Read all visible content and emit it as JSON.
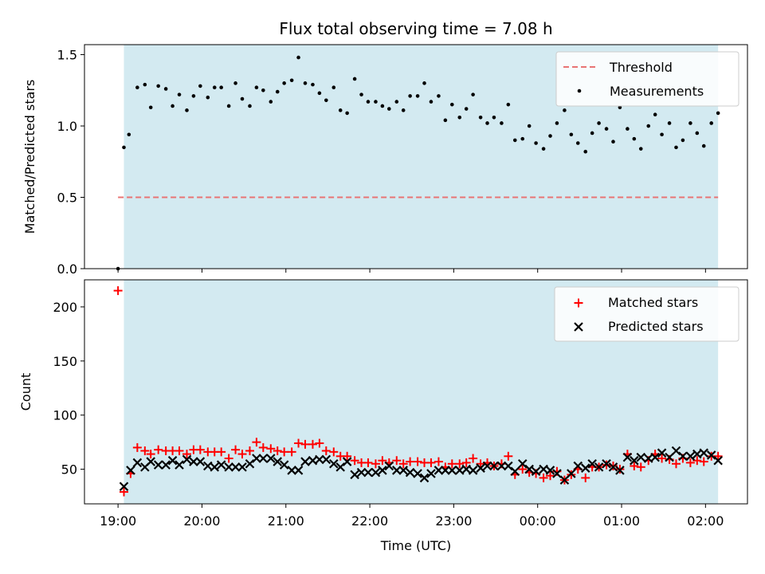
{
  "colors": {
    "shade": "#d3eaf1",
    "threshold": "#e87474",
    "matched": "#ff0000",
    "predicted": "#000000",
    "measurement": "#000000"
  },
  "chart_data": [
    {
      "type": "scatter",
      "title": "Flux total observing time = 7.08 h",
      "xlabel": "",
      "ylabel": "Matched/Predicted stars",
      "xlim": [
        -0.4,
        7.5
      ],
      "ylim": [
        0,
        1.57
      ],
      "yticks": [
        0.0,
        0.5,
        1.0,
        1.5
      ],
      "ytick_labels": [
        "0.0",
        "0.5",
        "1.0",
        "1.5"
      ],
      "shaded_interval": [
        0.07,
        7.15
      ],
      "threshold": {
        "name": "Threshold",
        "value": 0.5,
        "x_range": [
          0,
          7.15
        ]
      },
      "legend": {
        "position": "top-right",
        "entries": [
          "Threshold",
          "Measurements"
        ]
      },
      "series": [
        {
          "name": "Measurements",
          "x": [
            0.0,
            0.07,
            0.13,
            0.23,
            0.32,
            0.39,
            0.48,
            0.57,
            0.65,
            0.73,
            0.82,
            0.9,
            0.98,
            1.07,
            1.15,
            1.23,
            1.32,
            1.4,
            1.48,
            1.57,
            1.65,
            1.73,
            1.82,
            1.9,
            1.98,
            2.07,
            2.15,
            2.23,
            2.32,
            2.4,
            2.48,
            2.57,
            2.65,
            2.73,
            2.82,
            2.9,
            2.98,
            3.07,
            3.15,
            3.23,
            3.32,
            3.4,
            3.48,
            3.57,
            3.65,
            3.73,
            3.82,
            3.9,
            3.98,
            4.07,
            4.15,
            4.23,
            4.32,
            4.4,
            4.48,
            4.57,
            4.65,
            4.73,
            4.82,
            4.9,
            4.98,
            5.07,
            5.15,
            5.23,
            5.32,
            5.4,
            5.48,
            5.57,
            5.65,
            5.73,
            5.82,
            5.9,
            5.98,
            6.07,
            6.15,
            6.23,
            6.32,
            6.4,
            6.48,
            6.57,
            6.65,
            6.73,
            6.82,
            6.9,
            6.98,
            7.07,
            7.15
          ],
          "values": [
            0.0,
            0.85,
            0.94,
            1.27,
            1.29,
            1.13,
            1.28,
            1.26,
            1.14,
            1.22,
            1.11,
            1.21,
            1.28,
            1.2,
            1.27,
            1.27,
            1.14,
            1.3,
            1.19,
            1.14,
            1.27,
            1.25,
            1.17,
            1.24,
            1.3,
            1.32,
            1.48,
            1.3,
            1.29,
            1.23,
            1.18,
            1.27,
            1.11,
            1.09,
            1.33,
            1.22,
            1.17,
            1.17,
            1.14,
            1.12,
            1.17,
            1.11,
            1.21,
            1.21,
            1.3,
            1.17,
            1.21,
            1.04,
            1.15,
            1.06,
            1.12,
            1.22,
            1.06,
            1.02,
            1.06,
            1.02,
            1.15,
            0.9,
            0.91,
            1.0,
            0.88,
            0.84,
            0.93,
            1.02,
            1.11,
            0.94,
            0.88,
            0.82,
            0.95,
            1.02,
            0.98,
            0.89,
            1.13,
            0.98,
            0.91,
            0.84,
            1.0,
            1.08,
            0.94,
            1.02,
            0.85,
            0.9,
            1.02,
            0.95,
            0.86,
            1.02,
            1.09
          ]
        }
      ]
    },
    {
      "type": "scatter",
      "title": "",
      "xlabel": "Time (UTC)",
      "ylabel": "Count",
      "xlim": [
        -0.4,
        7.5
      ],
      "ylim": [
        18,
        225
      ],
      "yticks": [
        50,
        100,
        150,
        200
      ],
      "ytick_labels": [
        "50",
        "100",
        "150",
        "200"
      ],
      "xticks": [
        0,
        1,
        2,
        3,
        4,
        5,
        6,
        7
      ],
      "xtick_labels": [
        "19:00",
        "20:00",
        "21:00",
        "22:00",
        "23:00",
        "00:00",
        "01:00",
        "02:00"
      ],
      "shaded_interval": [
        0.07,
        7.15
      ],
      "legend": {
        "position": "top-right",
        "entries": [
          "Matched stars",
          "Predicted stars"
        ]
      },
      "series": [
        {
          "name": "Matched stars",
          "marker": "plus",
          "x": [
            0.0,
            0.07,
            0.15,
            0.23,
            0.32,
            0.39,
            0.48,
            0.57,
            0.65,
            0.73,
            0.82,
            0.9,
            0.98,
            1.07,
            1.15,
            1.23,
            1.32,
            1.4,
            1.48,
            1.57,
            1.65,
            1.73,
            1.82,
            1.9,
            1.98,
            2.07,
            2.15,
            2.23,
            2.32,
            2.4,
            2.48,
            2.57,
            2.65,
            2.73,
            2.82,
            2.9,
            2.98,
            3.07,
            3.15,
            3.23,
            3.32,
            3.4,
            3.48,
            3.57,
            3.65,
            3.73,
            3.82,
            3.9,
            3.98,
            4.07,
            4.15,
            4.23,
            4.32,
            4.4,
            4.48,
            4.57,
            4.65,
            4.73,
            4.82,
            4.9,
            4.98,
            5.07,
            5.15,
            5.23,
            5.32,
            5.4,
            5.48,
            5.57,
            5.65,
            5.73,
            5.82,
            5.9,
            5.98,
            6.07,
            6.15,
            6.23,
            6.32,
            6.4,
            6.48,
            6.57,
            6.65,
            6.73,
            6.82,
            6.9,
            6.98,
            7.07,
            7.15
          ],
          "values": [
            215,
            29,
            46,
            70,
            67,
            64,
            68,
            67,
            67,
            67,
            64,
            68,
            68,
            66,
            66,
            66,
            60,
            68,
            64,
            67,
            75,
            70,
            69,
            67,
            66,
            66,
            74,
            73,
            73,
            74,
            67,
            66,
            62,
            62,
            58,
            56,
            56,
            55,
            58,
            56,
            58,
            55,
            57,
            57,
            56,
            56,
            57,
            52,
            55,
            55,
            56,
            60,
            55,
            56,
            53,
            55,
            62,
            45,
            50,
            47,
            46,
            42,
            44,
            48,
            40,
            45,
            50,
            42,
            52,
            52,
            54,
            53,
            50,
            64,
            53,
            52,
            58,
            64,
            60,
            59,
            55,
            60,
            56,
            58,
            57,
            62,
            62
          ]
        },
        {
          "name": "Predicted stars",
          "marker": "x",
          "x": [
            0.07,
            0.15,
            0.23,
            0.32,
            0.39,
            0.48,
            0.57,
            0.65,
            0.73,
            0.82,
            0.9,
            0.98,
            1.07,
            1.15,
            1.23,
            1.32,
            1.4,
            1.48,
            1.57,
            1.65,
            1.73,
            1.82,
            1.9,
            1.98,
            2.07,
            2.15,
            2.23,
            2.32,
            2.4,
            2.48,
            2.57,
            2.65,
            2.73,
            2.82,
            2.9,
            2.98,
            3.07,
            3.15,
            3.23,
            3.32,
            3.4,
            3.48,
            3.57,
            3.65,
            3.73,
            3.82,
            3.9,
            3.98,
            4.07,
            4.15,
            4.23,
            4.32,
            4.4,
            4.48,
            4.57,
            4.65,
            4.73,
            4.82,
            4.9,
            4.98,
            5.07,
            5.15,
            5.23,
            5.32,
            5.4,
            5.48,
            5.57,
            5.65,
            5.73,
            5.82,
            5.9,
            5.98,
            6.07,
            6.15,
            6.23,
            6.32,
            6.4,
            6.48,
            6.57,
            6.65,
            6.73,
            6.82,
            6.9,
            6.98,
            7.07,
            7.15
          ],
          "values": [
            34,
            49,
            56,
            52,
            57,
            54,
            54,
            58,
            54,
            59,
            57,
            57,
            53,
            52,
            54,
            52,
            52,
            52,
            55,
            60,
            60,
            60,
            57,
            54,
            49,
            49,
            57,
            58,
            59,
            59,
            55,
            52,
            57,
            45,
            47,
            47,
            47,
            49,
            53,
            49,
            49,
            47,
            46,
            42,
            46,
            49,
            49,
            49,
            49,
            50,
            49,
            51,
            53,
            53,
            53,
            53,
            48,
            55,
            50,
            48,
            50,
            49,
            46,
            40,
            46,
            53,
            51,
            55,
            52,
            55,
            52,
            49,
            61,
            58,
            61,
            60,
            61,
            65,
            61,
            67,
            62,
            62,
            64,
            65,
            63,
            58
          ]
        }
      ]
    }
  ]
}
